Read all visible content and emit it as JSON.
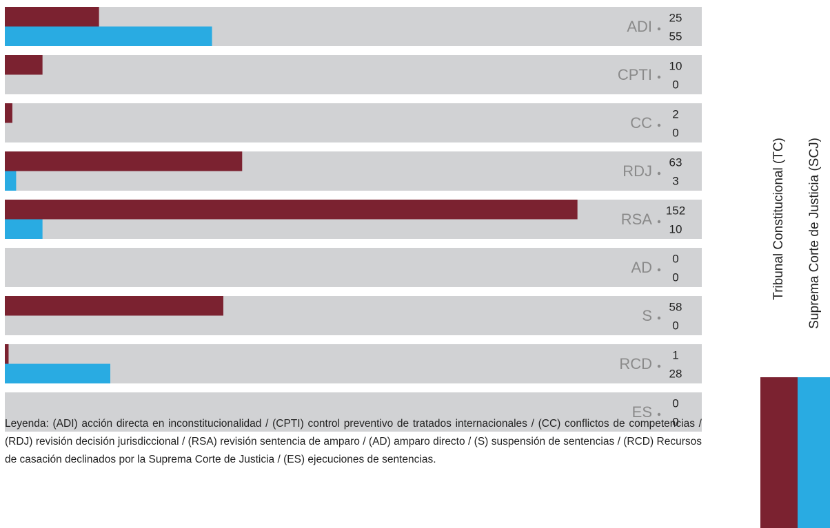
{
  "chart_data": {
    "type": "bar",
    "orientation": "horizontal",
    "categories": [
      "ADI",
      "CPTI",
      "CC",
      "RDJ",
      "RSA",
      "AD",
      "S",
      "RCD",
      "ES"
    ],
    "series": [
      {
        "name": "Tribunal Constitucional (TC)",
        "color": "#7b2230",
        "values": [
          25,
          10,
          2,
          63,
          152,
          0,
          58,
          1,
          0
        ]
      },
      {
        "name": "Suprema Corte de Justicia (SCJ)",
        "color": "#29abe2",
        "values": [
          55,
          0,
          0,
          3,
          10,
          0,
          0,
          28,
          0
        ]
      }
    ],
    "xlim": [
      0,
      185
    ],
    "note": "Leyenda: (ADI) acción directa en inconstitucionalidad / (CPTI) control preventivo de tratados internacionales / (CC) conflictos de competencias / (RDJ) revisión decisión jurisdiccional / (RSA) revisión sentencia de amparo / (AD) amparo directo / (S) suspensión de sentencias / (RCD) Recursos de casación declinados por la Suprema Corte de Justicia / (ES) ejecuciones de sentencias."
  }
}
